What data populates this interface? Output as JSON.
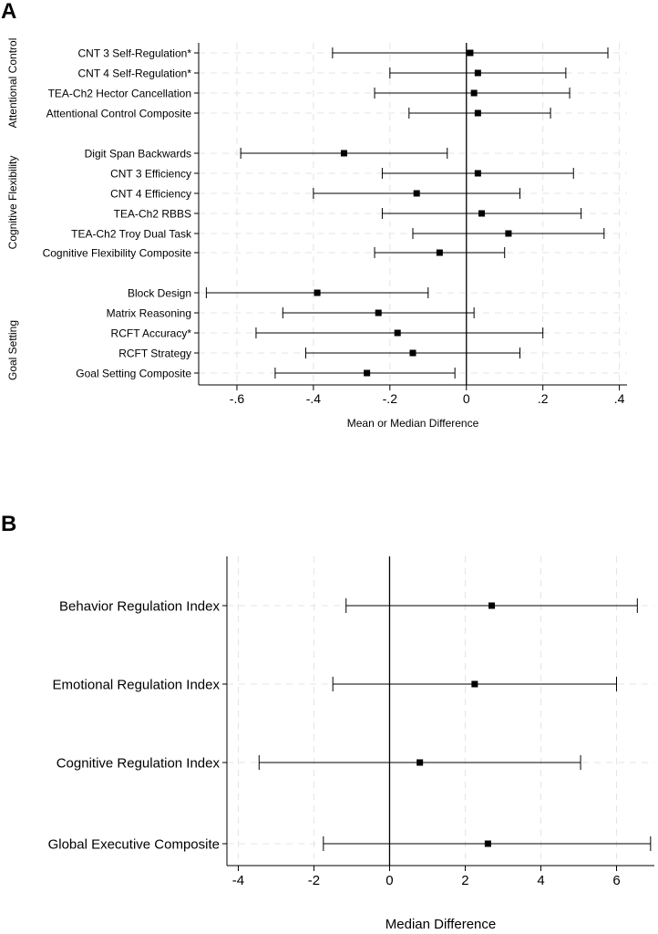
{
  "panels": [
    {
      "letter": "A",
      "chart_data": {
        "type": "forest",
        "xlabel": "Mean or Median Difference",
        "xlim": [
          -0.7,
          0.42
        ],
        "xticks": [
          -0.6,
          -0.4,
          -0.2,
          0,
          0.2,
          0.4
        ],
        "xtick_labels": [
          "-.6",
          "-.4",
          "-.2",
          "0",
          ".2",
          ".4"
        ],
        "reference_line": 0,
        "groups": [
          {
            "name": "Attentional Control",
            "rows": [
              {
                "label": "CNT 3 Self-Regulation*",
                "estimate": 0.01,
                "lower": -0.35,
                "upper": 0.37
              },
              {
                "label": "CNT 4 Self-Regulation*",
                "estimate": 0.03,
                "lower": -0.2,
                "upper": 0.26
              },
              {
                "label": "TEA-Ch2 Hector Cancellation",
                "estimate": 0.02,
                "lower": -0.24,
                "upper": 0.27
              },
              {
                "label": "Attentional Control Composite",
                "estimate": 0.03,
                "lower": -0.15,
                "upper": 0.22
              }
            ]
          },
          {
            "name": "Cognitive Flexibility",
            "rows": [
              {
                "label": "Digit Span Backwards",
                "estimate": -0.32,
                "lower": -0.59,
                "upper": -0.05
              },
              {
                "label": "CNT 3 Efficiency",
                "estimate": 0.03,
                "lower": -0.22,
                "upper": 0.28
              },
              {
                "label": "CNT 4 Efficiency",
                "estimate": -0.13,
                "lower": -0.4,
                "upper": 0.14
              },
              {
                "label": "TEA-Ch2 RBBS",
                "estimate": 0.04,
                "lower": -0.22,
                "upper": 0.3
              },
              {
                "label": "TEA-Ch2 Troy Dual Task",
                "estimate": 0.11,
                "lower": -0.14,
                "upper": 0.36
              },
              {
                "label": "Cognitive Flexibility Composite",
                "estimate": -0.07,
                "lower": -0.24,
                "upper": 0.1
              }
            ]
          },
          {
            "name": "Goal Setting",
            "rows": [
              {
                "label": "Block Design",
                "estimate": -0.39,
                "lower": -0.68,
                "upper": -0.1
              },
              {
                "label": "Matrix Reasoning",
                "estimate": -0.23,
                "lower": -0.48,
                "upper": 0.02
              },
              {
                "label": "RCFT Accuracy*",
                "estimate": -0.18,
                "lower": -0.55,
                "upper": 0.2
              },
              {
                "label": "RCFT Strategy",
                "estimate": -0.14,
                "lower": -0.42,
                "upper": 0.14
              },
              {
                "label": "Goal Setting Composite",
                "estimate": -0.26,
                "lower": -0.5,
                "upper": -0.03
              }
            ]
          }
        ]
      }
    },
    {
      "letter": "B",
      "chart_data": {
        "type": "forest",
        "xlabel": "Median Difference",
        "xlim": [
          -4.3,
          7.0
        ],
        "xticks": [
          -4,
          -2,
          0,
          2,
          4,
          6
        ],
        "xtick_labels": [
          "-4",
          "-2",
          "0",
          "2",
          "4",
          "6"
        ],
        "reference_line": 0,
        "groups": [
          {
            "name": "",
            "rows": [
              {
                "label": "Behavior Regulation Index",
                "estimate": 2.7,
                "lower": -1.15,
                "upper": 6.55
              },
              {
                "label": "Emotional Regulation Index",
                "estimate": 2.25,
                "lower": -1.5,
                "upper": 6.0
              },
              {
                "label": "Cognitive Regulation Index",
                "estimate": 0.8,
                "lower": -3.45,
                "upper": 5.05
              },
              {
                "label": "Global Executive Composite",
                "estimate": 2.6,
                "lower": -1.75,
                "upper": 6.9
              }
            ]
          }
        ]
      }
    }
  ]
}
